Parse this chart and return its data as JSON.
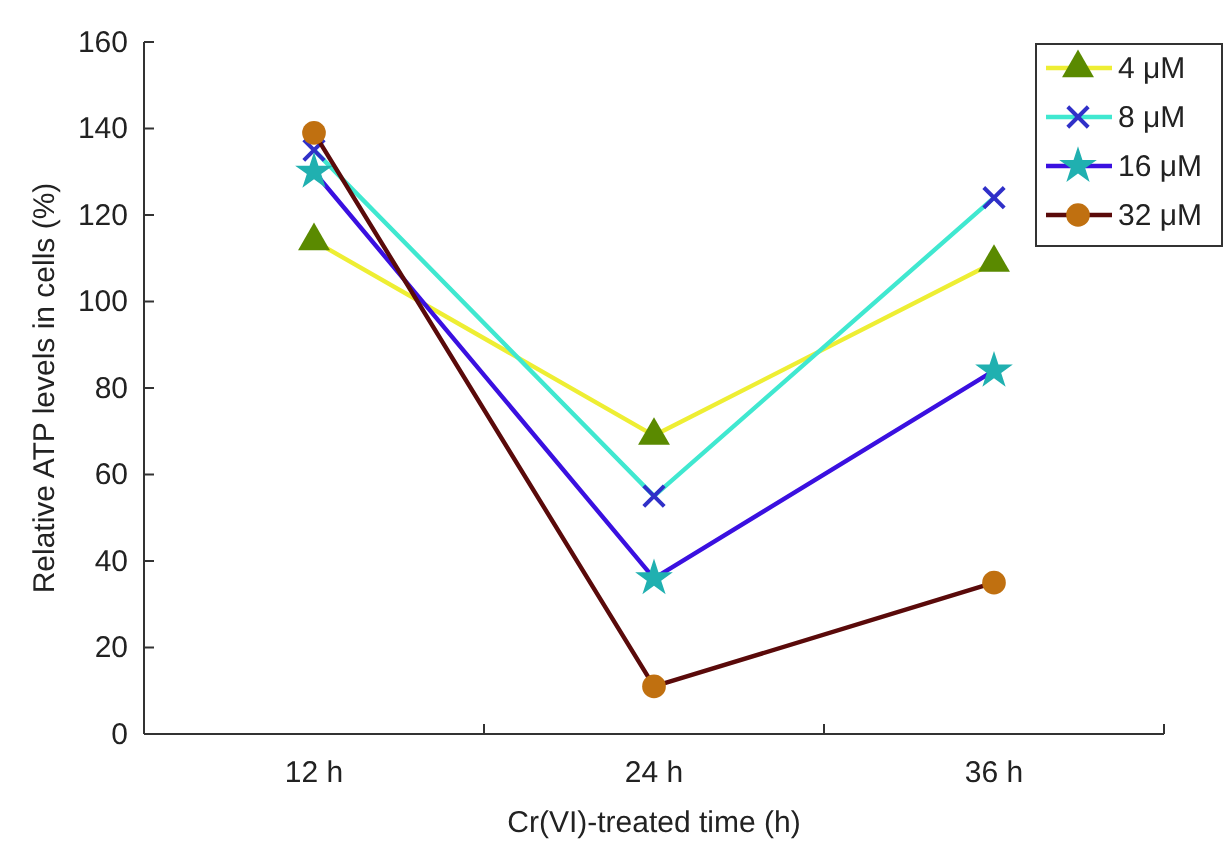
{
  "chart_data": {
    "type": "line",
    "xlabel": "Cr(VI)-treated time (h)",
    "ylabel": "Relative ATP levels in cells (%)",
    "categories": [
      "12 h",
      "24 h",
      "36 h"
    ],
    "series": [
      {
        "name": "4 μM",
        "color": "#eeee33",
        "colors": [
          "#5a8a00",
          "#5a8a00",
          "#5a8a00"
        ],
        "marker": "triangle",
        "values": [
          114,
          69,
          109
        ]
      },
      {
        "name": "8 μM",
        "color": "#40e8d0",
        "colors": [
          "#3030c8",
          "#3030c8",
          "#3030c8"
        ],
        "marker": "cross",
        "values": [
          135,
          55,
          124
        ]
      },
      {
        "name": "16 μM",
        "color": "#3a10e0",
        "colors": [
          "#20b0b0",
          "#20b0b0",
          "#20b0b0"
        ],
        "marker": "star",
        "values": [
          130,
          36,
          84
        ]
      },
      {
        "name": "32 μM",
        "color": "#5a0a0a",
        "colors": [
          "#c07010",
          "#c07010",
          "#c07010"
        ],
        "marker": "circle",
        "values": [
          139,
          11,
          35
        ]
      }
    ],
    "ylim": [
      0,
      160
    ],
    "yticks": [
      0,
      20,
      40,
      60,
      80,
      100,
      120,
      140,
      160
    ],
    "legend": "top right",
    "line_style": "solid"
  }
}
